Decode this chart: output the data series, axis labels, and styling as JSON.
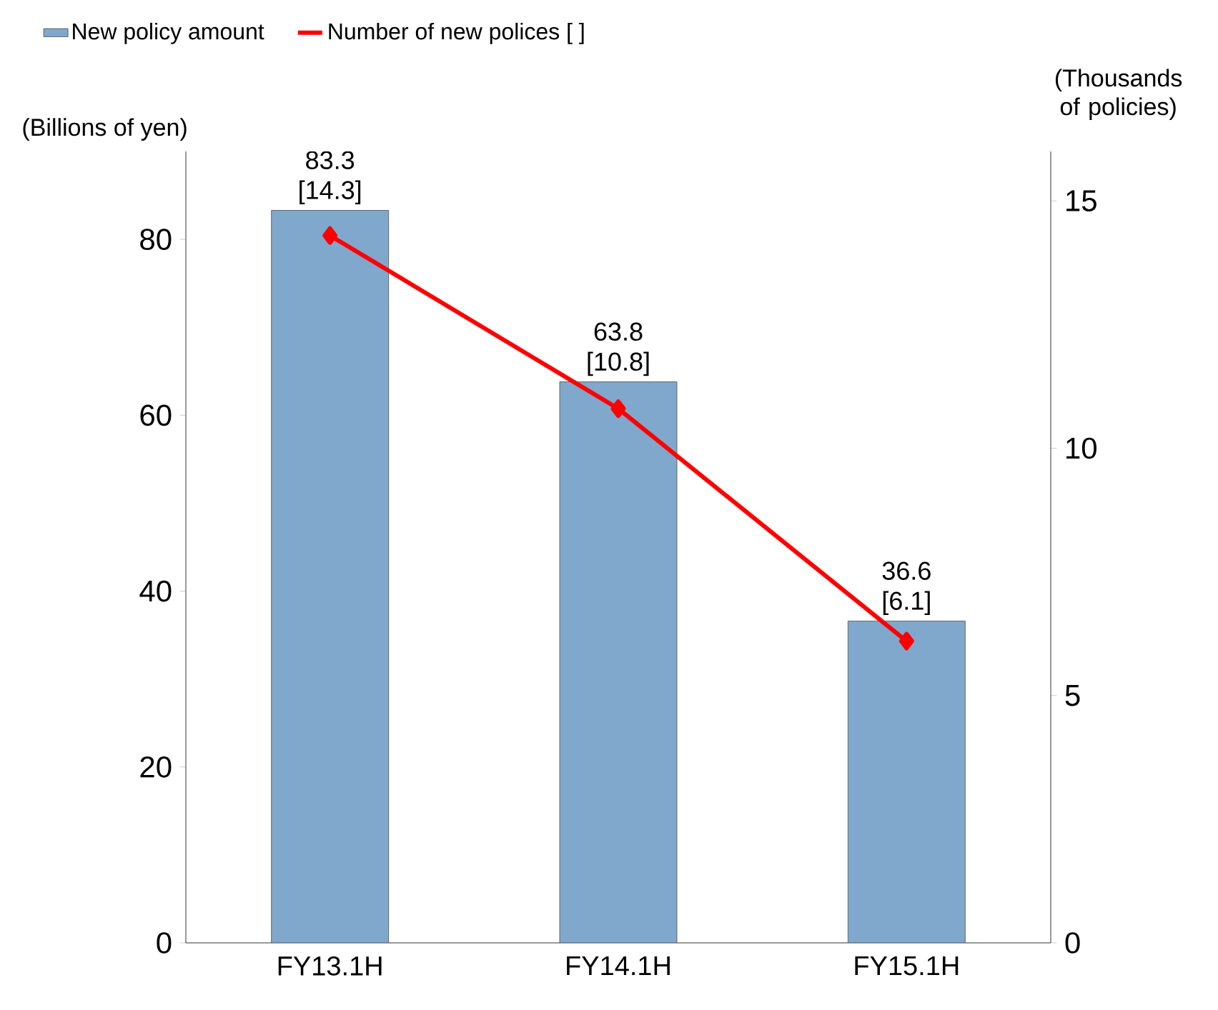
{
  "chart_data": {
    "type": "bar",
    "ylabel": "(Billions of yen)",
    "y2label": "(Thousands of policies)",
    "categories": [
      "FY13.1H",
      "FY14.1H",
      "FY15.1H"
    ],
    "series": [
      {
        "name": "New policy amount",
        "color": "#7fa8cc",
        "values": [
          83.3,
          63.8,
          36.6
        ],
        "value_labels": [
          "83.3",
          "63.8",
          "36.6"
        ]
      },
      {
        "name": "Number of new polices [ ]",
        "type": "line",
        "axis": "y2",
        "color": "#ff0000",
        "marker": "diamond",
        "values": [
          14.3,
          10.8,
          6.1
        ],
        "value_labels": [
          "[14.3]",
          "[10.8]",
          "[6.1]"
        ]
      }
    ],
    "ylim": [
      0,
      90
    ],
    "yticks": [
      0,
      20,
      40,
      60,
      80
    ],
    "y2lim": [
      0,
      16
    ],
    "y2ticks": [
      0,
      5,
      10,
      15
    ],
    "legend": "top",
    "grid": false
  }
}
